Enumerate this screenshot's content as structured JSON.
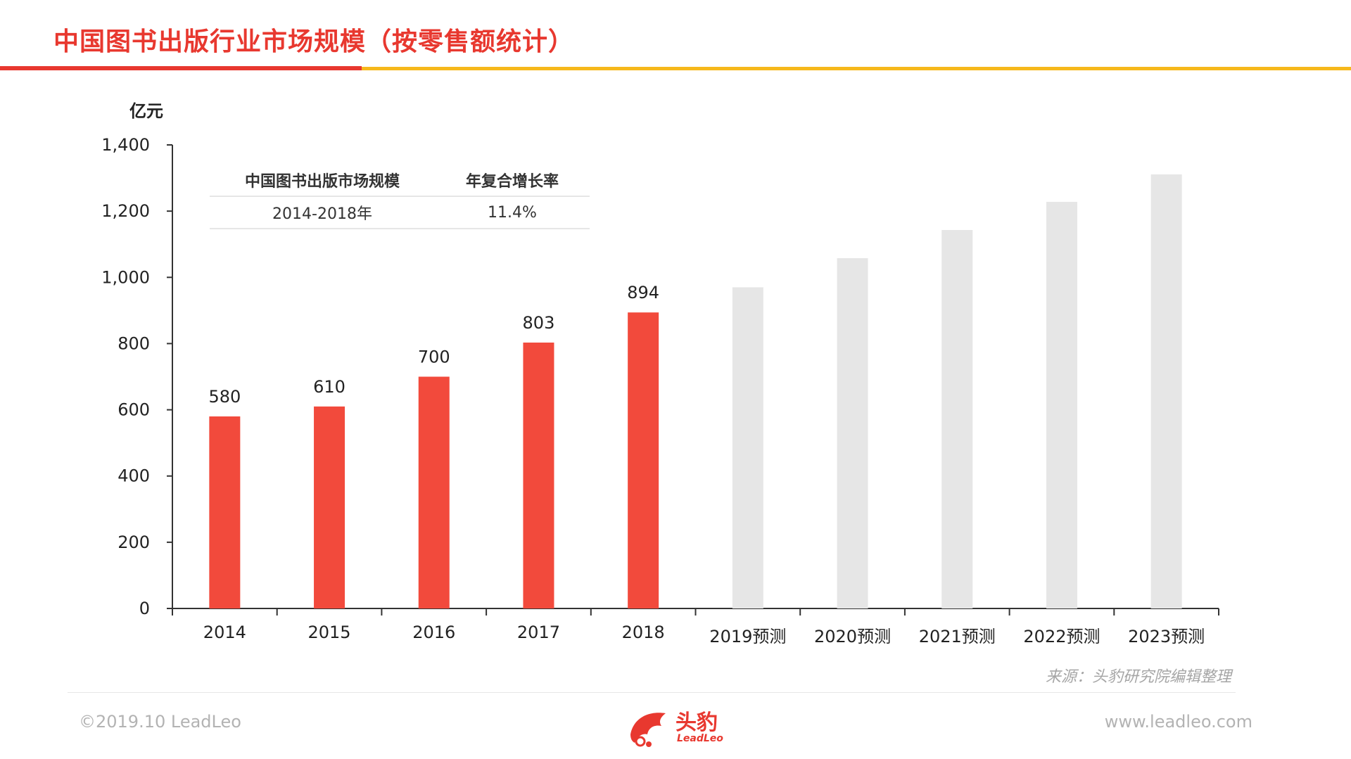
{
  "header": {
    "title": "中国图书出版行业市场规模（按零售额统计）"
  },
  "unit_label": "亿元",
  "summary_table": {
    "headers": [
      "中国图书出版市场规模",
      "年复合增长率"
    ],
    "rows": [
      [
        "2014-2018年",
        "11.4%"
      ]
    ]
  },
  "chart_data": {
    "type": "bar",
    "categories": [
      "2014",
      "2015",
      "2016",
      "2017",
      "2018",
      "2019预测",
      "2020预测",
      "2021预测",
      "2022预测",
      "2023预测"
    ],
    "values": [
      580,
      610,
      700,
      803,
      894,
      970,
      1058,
      1143,
      1228,
      1311
    ],
    "data_labels": [
      "580",
      "610",
      "700",
      "803",
      "894",
      "",
      "",
      "",
      "",
      ""
    ],
    "forecast": [
      false,
      false,
      false,
      false,
      false,
      true,
      true,
      true,
      true,
      true
    ],
    "ylim": [
      0,
      1400
    ],
    "yticks": [
      0,
      200,
      400,
      600,
      800,
      1000,
      1200,
      1400
    ],
    "ytick_labels": [
      "0",
      "200",
      "400",
      "600",
      "800",
      "1,000",
      "1,200",
      "1,400"
    ],
    "ylabel": "亿元",
    "colors": {
      "actual": "#f24a3c",
      "forecast": "#e6e6e6",
      "axis": "#333333"
    }
  },
  "source": "来源：头豹研究院编辑整理",
  "footer": {
    "copyright": "©2019.10 LeadLeo",
    "website": "www.leadleo.com",
    "logo_text": "头豹",
    "logo_sub": "LeadLeo"
  }
}
